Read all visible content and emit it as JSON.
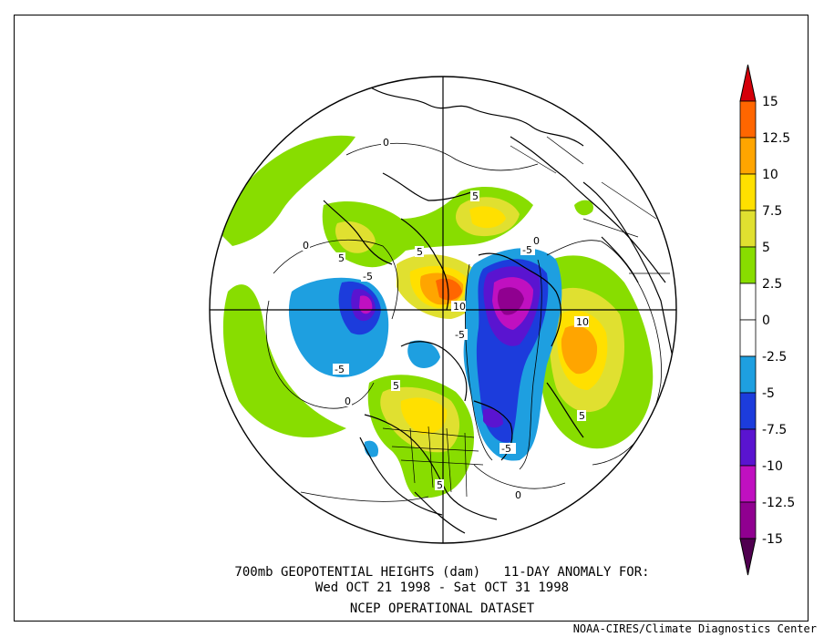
{
  "title": {
    "line1": "700mb GEOPOTENTIAL HEIGHTS (dam)   11-DAY ANOMALY FOR:",
    "line2": "Wed OCT 21 1998 - Sat OCT 31 1998",
    "line3": "NCEP OPERATIONAL DATASET"
  },
  "credit": "NOAA-CIRES/Climate Diagnostics Center",
  "colorbar": {
    "levels": [
      "15",
      "12.5",
      "10",
      "7.5",
      "5",
      "2.5",
      "0",
      "-2.5",
      "-5",
      "-7.5",
      "-10",
      "-12.5",
      "-15"
    ],
    "colors": {
      "above_15": "#d4000a",
      "12.5_15": "#ff6600",
      "10_12.5": "#ffa500",
      "7.5_10": "#ffe000",
      "5_7.5": "#e0e030",
      "2.5_5": "#88dd00",
      "0_2.5": "#ffffff",
      "-2.5_0": "#ffffff",
      "-5_-2.5": "#1e9fe0",
      "-7.5_-5": "#1c3cdc",
      "-10_-7.5": "#5a14d0",
      "-12.5_-10": "#c010c0",
      "-15_-12.5": "#900090",
      "below_-15": "#500050"
    }
  },
  "contour_labels": [
    {
      "id": "c1",
      "text": "0"
    },
    {
      "id": "c2",
      "text": "0"
    },
    {
      "id": "c3",
      "text": "0"
    },
    {
      "id": "c4",
      "text": "0"
    },
    {
      "id": "c5",
      "text": "0"
    },
    {
      "id": "c6",
      "text": "5"
    },
    {
      "id": "c7",
      "text": "5"
    },
    {
      "id": "c8",
      "text": "-5"
    },
    {
      "id": "c9",
      "text": "5"
    },
    {
      "id": "c10",
      "text": "-5"
    },
    {
      "id": "c11",
      "text": "-5"
    },
    {
      "id": "c12",
      "text": "5"
    },
    {
      "id": "c13",
      "text": "10"
    },
    {
      "id": "c14",
      "text": "10"
    },
    {
      "id": "c15",
      "text": "-5"
    },
    {
      "id": "c16",
      "text": "5"
    },
    {
      "id": "c17",
      "text": "-5"
    },
    {
      "id": "c18",
      "text": "5"
    }
  ]
}
